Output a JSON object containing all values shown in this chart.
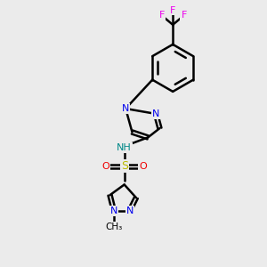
{
  "background_color": "#ebebeb",
  "bond_color": "#000000",
  "bond_width": 1.8,
  "atom_colors": {
    "N": "#0000ee",
    "O": "#ee0000",
    "F": "#ee00ee",
    "S": "#bbbb00",
    "C": "#000000",
    "H": "#008888"
  },
  "font_size": 8.0,
  "fig_size": [
    3.0,
    3.0
  ],
  "dpi": 100
}
